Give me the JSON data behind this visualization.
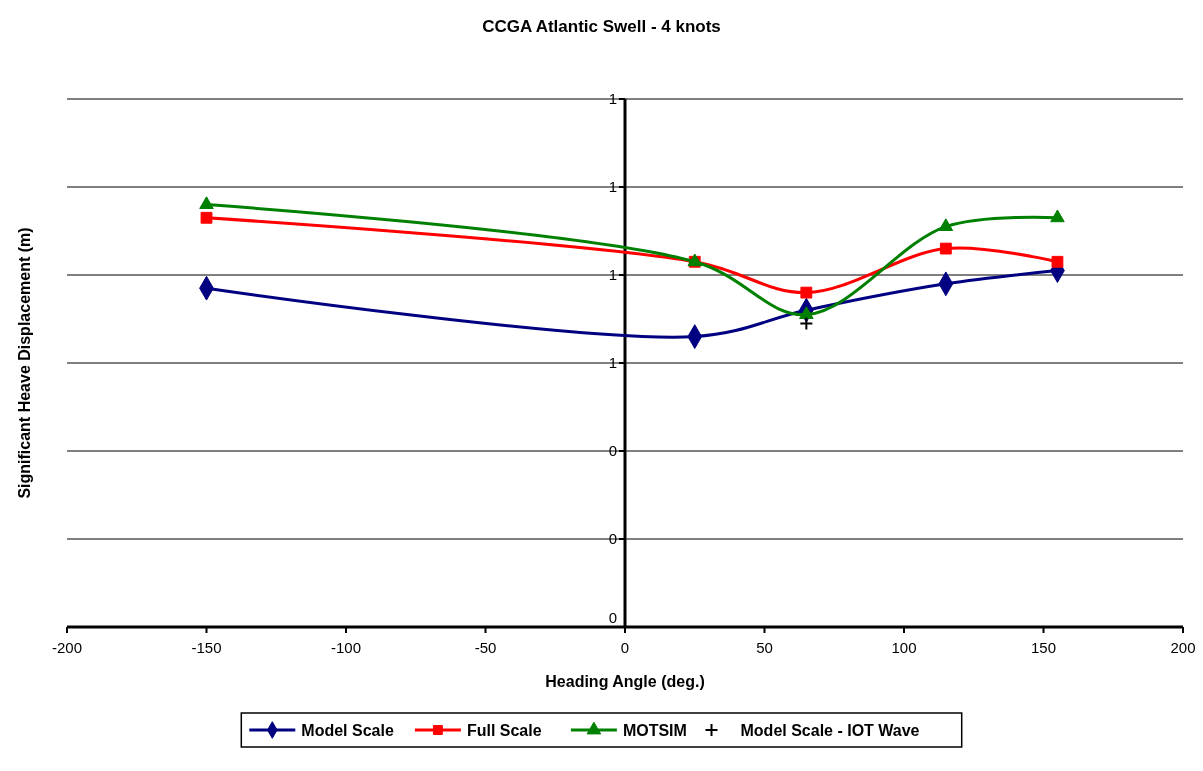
{
  "chart_data": {
    "type": "line",
    "title": "CCGA Atlantic Swell - 4 knots",
    "xlabel": "Heading Angle (deg.)",
    "ylabel": "Significant Heave Displacement (m)",
    "xlim": [
      -200,
      200
    ],
    "xticks": [
      -200,
      -150,
      -100,
      -50,
      0,
      50,
      100,
      150,
      200
    ],
    "ylim": [
      0,
      1.2
    ],
    "yticks": [
      0,
      {
        "value": 0.2,
        "label": "0"
      },
      {
        "value": 0.4,
        "label": "0"
      },
      {
        "value": 0.6,
        "label": "1"
      },
      {
        "value": 0.8,
        "label": "1"
      },
      {
        "value": 1.0,
        "label": "1"
      },
      {
        "value": 1.2,
        "label": "1"
      }
    ],
    "grid": "y",
    "legend": "bottom",
    "series": [
      {
        "name": "Model Scale",
        "color": "#000080",
        "marker": "diamond",
        "x": [
          -150,
          25,
          65,
          115,
          155
        ],
        "values": [
          0.77,
          0.66,
          0.72,
          0.78,
          0.81
        ]
      },
      {
        "name": "Full Scale",
        "color": "#ff0000",
        "marker": "square",
        "x": [
          -150,
          25,
          65,
          115,
          155
        ],
        "values": [
          0.93,
          0.83,
          0.76,
          0.86,
          0.83
        ]
      },
      {
        "name": "MOTSIM",
        "color": "#008000",
        "marker": "triangle",
        "x": [
          -150,
          25,
          65,
          115,
          155
        ],
        "values": [
          0.96,
          0.83,
          0.71,
          0.91,
          0.93
        ]
      },
      {
        "name": "Model Scale - IOT Wave",
        "type": "scatter",
        "color": "#000000",
        "marker": "cross",
        "x": [
          65
        ],
        "values": [
          0.69
        ]
      }
    ]
  }
}
